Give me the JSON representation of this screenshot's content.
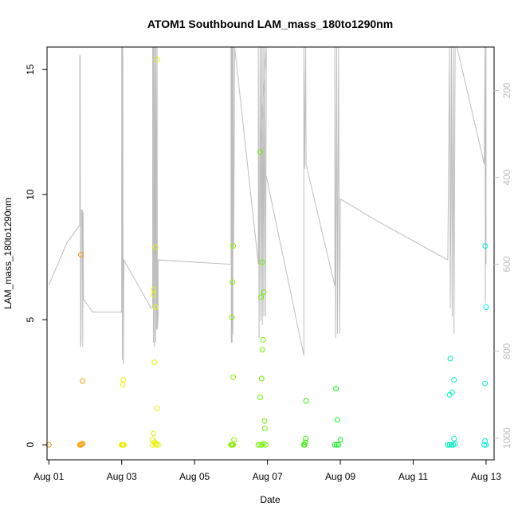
{
  "chart_data": {
    "type": "scatter",
    "title": "ATOM1 Southbound LAM_mass_180to1290nm",
    "xlabel": "Date",
    "ylabel": "LAM_mass_180to1290nm",
    "x_axis": {
      "min_day": 0.95,
      "max_day": 13.22,
      "ticks": [
        {
          "day": 1,
          "label": "Aug 01"
        },
        {
          "day": 3,
          "label": "Aug 03"
        },
        {
          "day": 5,
          "label": "Aug 05"
        },
        {
          "day": 7,
          "label": "Aug 07"
        },
        {
          "day": 9,
          "label": "Aug 09"
        },
        {
          "day": 11,
          "label": "Aug 11"
        },
        {
          "day": 13,
          "label": "Aug 13"
        }
      ]
    },
    "y_axis": {
      "ylim": [
        -0.6,
        15.9
      ],
      "ticks": [
        0,
        5,
        10,
        15
      ]
    },
    "y2_axis": {
      "ylim": [
        1050,
        100
      ],
      "ticks": [
        200,
        400,
        600,
        800,
        1000
      ],
      "reversed": true,
      "color": "#bdbdbd"
    },
    "grid": false,
    "points": [
      {
        "x": 1.0,
        "y": 0.0,
        "color": "#ff8c00"
      },
      {
        "x": 1.85,
        "y": 0.0,
        "color": "#ff9a00"
      },
      {
        "x": 1.88,
        "y": 0.0,
        "color": "#ff9a00"
      },
      {
        "x": 1.9,
        "y": 0.02,
        "color": "#ff9a00"
      },
      {
        "x": 1.93,
        "y": 0.05,
        "color": "#ffa000"
      },
      {
        "x": 1.88,
        "y": 7.6,
        "color": "#ff9a00"
      },
      {
        "x": 1.93,
        "y": 2.55,
        "color": "#ffa000"
      },
      {
        "x": 3.0,
        "y": 0.0,
        "color": "#f0ec00"
      },
      {
        "x": 3.02,
        "y": 0.0,
        "color": "#f0ec00"
      },
      {
        "x": 3.04,
        "y": 0.0,
        "color": "#f0ec00"
      },
      {
        "x": 3.06,
        "y": 0.0,
        "color": "#f0ec00"
      },
      {
        "x": 3.04,
        "y": 2.6,
        "color": "#f0ec00"
      },
      {
        "x": 3.03,
        "y": 2.4,
        "color": "#f0ec00"
      },
      {
        "x": 3.85,
        "y": 0.0,
        "color": "#e6f200"
      },
      {
        "x": 3.87,
        "y": 0.45,
        "color": "#e6f200"
      },
      {
        "x": 3.85,
        "y": 0.2,
        "color": "#e6f200"
      },
      {
        "x": 3.9,
        "y": 0.1,
        "color": "#e6f200"
      },
      {
        "x": 3.93,
        "y": 0.0,
        "color": "#e6f200"
      },
      {
        "x": 3.96,
        "y": 0.05,
        "color": "#e6f200"
      },
      {
        "x": 4.0,
        "y": 0.0,
        "color": "#e6f200"
      },
      {
        "x": 3.9,
        "y": 3.3,
        "color": "#e6f200"
      },
      {
        "x": 3.87,
        "y": 6.2,
        "color": "#e6f200"
      },
      {
        "x": 3.87,
        "y": 6.0,
        "color": "#e6f200"
      },
      {
        "x": 3.93,
        "y": 5.5,
        "color": "#e6f200"
      },
      {
        "x": 3.93,
        "y": 7.9,
        "color": "#e6f200"
      },
      {
        "x": 3.97,
        "y": 1.45,
        "color": "#e6f200"
      },
      {
        "x": 3.97,
        "y": 15.4,
        "color": "#e6f200"
      },
      {
        "x": 6.0,
        "y": 0.0,
        "color": "#8cf000"
      },
      {
        "x": 6.02,
        "y": 0.0,
        "color": "#8cf000"
      },
      {
        "x": 6.04,
        "y": 0.0,
        "color": "#8cf000"
      },
      {
        "x": 6.06,
        "y": 0.0,
        "color": "#8cf000"
      },
      {
        "x": 6.08,
        "y": 0.2,
        "color": "#8cf000"
      },
      {
        "x": 6.06,
        "y": 2.7,
        "color": "#8cf000"
      },
      {
        "x": 6.02,
        "y": 5.1,
        "color": "#8cf000"
      },
      {
        "x": 6.04,
        "y": 6.5,
        "color": "#8cf000"
      },
      {
        "x": 6.06,
        "y": 7.95,
        "color": "#8cf000"
      },
      {
        "x": 6.75,
        "y": 0.0,
        "color": "#70f000"
      },
      {
        "x": 6.8,
        "y": 0.0,
        "color": "#70f000"
      },
      {
        "x": 6.85,
        "y": 0.0,
        "color": "#70f000"
      },
      {
        "x": 6.9,
        "y": 0.05,
        "color": "#70f000"
      },
      {
        "x": 6.95,
        "y": 0.0,
        "color": "#70f000"
      },
      {
        "x": 6.8,
        "y": 11.7,
        "color": "#70f000"
      },
      {
        "x": 6.85,
        "y": 7.3,
        "color": "#70f000"
      },
      {
        "x": 6.9,
        "y": 6.1,
        "color": "#70f000"
      },
      {
        "x": 6.82,
        "y": 5.9,
        "color": "#70f000"
      },
      {
        "x": 6.88,
        "y": 4.2,
        "color": "#70f000"
      },
      {
        "x": 6.86,
        "y": 3.8,
        "color": "#70f000"
      },
      {
        "x": 6.84,
        "y": 2.65,
        "color": "#70f000"
      },
      {
        "x": 6.8,
        "y": 1.9,
        "color": "#70f000"
      },
      {
        "x": 6.92,
        "y": 0.95,
        "color": "#70f000"
      },
      {
        "x": 6.93,
        "y": 0.65,
        "color": "#70f000"
      },
      {
        "x": 8.0,
        "y": 0.0,
        "color": "#2cf000"
      },
      {
        "x": 8.02,
        "y": 0.0,
        "color": "#2cf000"
      },
      {
        "x": 8.04,
        "y": 0.1,
        "color": "#2cf000"
      },
      {
        "x": 8.05,
        "y": 0.25,
        "color": "#2cf000"
      },
      {
        "x": 8.06,
        "y": 1.75,
        "color": "#2cf000"
      },
      {
        "x": 8.85,
        "y": 0.0,
        "color": "#10f020"
      },
      {
        "x": 8.9,
        "y": 0.0,
        "color": "#10f020"
      },
      {
        "x": 8.95,
        "y": 0.0,
        "color": "#10f020"
      },
      {
        "x": 9.0,
        "y": 0.2,
        "color": "#10f020"
      },
      {
        "x": 8.92,
        "y": 1.0,
        "color": "#10f020"
      },
      {
        "x": 8.88,
        "y": 2.25,
        "color": "#10f020"
      },
      {
        "x": 11.95,
        "y": 0.0,
        "color": "#00f0c0"
      },
      {
        "x": 12.0,
        "y": 0.0,
        "color": "#00f0c0"
      },
      {
        "x": 12.05,
        "y": 0.0,
        "color": "#00f0c0"
      },
      {
        "x": 12.1,
        "y": 0.0,
        "color": "#00f0c0"
      },
      {
        "x": 12.15,
        "y": 0.05,
        "color": "#00f0c0"
      },
      {
        "x": 12.12,
        "y": 0.25,
        "color": "#00f0c0"
      },
      {
        "x": 12.0,
        "y": 2.0,
        "color": "#00f0c0"
      },
      {
        "x": 12.07,
        "y": 2.1,
        "color": "#00f0c0"
      },
      {
        "x": 12.12,
        "y": 2.6,
        "color": "#00f0c0"
      },
      {
        "x": 12.02,
        "y": 3.45,
        "color": "#00f0c0"
      },
      {
        "x": 12.95,
        "y": 0.0,
        "color": "#00f0d8"
      },
      {
        "x": 13.0,
        "y": 0.0,
        "color": "#00f0d8"
      },
      {
        "x": 12.97,
        "y": 0.15,
        "color": "#00f0d8"
      },
      {
        "x": 12.97,
        "y": 2.45,
        "color": "#00f0d8"
      },
      {
        "x": 13.0,
        "y": 5.5,
        "color": "#00f0d8"
      },
      {
        "x": 12.98,
        "y": 7.95,
        "color": "#00f0d8"
      }
    ],
    "line_series": {
      "axis": "right",
      "color": "#bdbdbd",
      "points": [
        {
          "x": 1.0,
          "y": 648
        },
        {
          "x": 1.5,
          "y": 550
        },
        {
          "x": 1.85,
          "y": 510
        },
        {
          "x": 1.85,
          "y": 120
        },
        {
          "x": 1.86,
          "y": 120
        },
        {
          "x": 1.87,
          "y": 790
        },
        {
          "x": 1.88,
          "y": 780
        },
        {
          "x": 1.9,
          "y": 475
        },
        {
          "x": 1.92,
          "y": 475
        },
        {
          "x": 1.93,
          "y": 790
        },
        {
          "x": 1.94,
          "y": 480
        },
        {
          "x": 1.95,
          "y": 680
        },
        {
          "x": 2.2,
          "y": 710
        },
        {
          "x": 3.0,
          "y": 710
        },
        {
          "x": 3.0,
          "y": 100
        },
        {
          "x": 3.01,
          "y": 100
        },
        {
          "x": 3.02,
          "y": 820
        },
        {
          "x": 3.03,
          "y": 100
        },
        {
          "x": 3.04,
          "y": 830
        },
        {
          "x": 3.06,
          "y": 590
        },
        {
          "x": 3.8,
          "y": 700
        },
        {
          "x": 3.85,
          "y": 700
        },
        {
          "x": 3.85,
          "y": 100
        },
        {
          "x": 3.86,
          "y": 100
        },
        {
          "x": 3.87,
          "y": 780
        },
        {
          "x": 3.88,
          "y": 100
        },
        {
          "x": 3.9,
          "y": 790
        },
        {
          "x": 3.91,
          "y": 100
        },
        {
          "x": 3.93,
          "y": 780
        },
        {
          "x": 3.94,
          "y": 100
        },
        {
          "x": 3.96,
          "y": 750
        },
        {
          "x": 3.97,
          "y": 100
        },
        {
          "x": 3.98,
          "y": 750
        },
        {
          "x": 4.0,
          "y": 720
        },
        {
          "x": 4.0,
          "y": 590
        },
        {
          "x": 6.0,
          "y": 600
        },
        {
          "x": 6.0,
          "y": 100
        },
        {
          "x": 6.01,
          "y": 780
        },
        {
          "x": 6.02,
          "y": 100
        },
        {
          "x": 6.03,
          "y": 780
        },
        {
          "x": 6.04,
          "y": 100
        },
        {
          "x": 6.05,
          "y": 760
        },
        {
          "x": 6.06,
          "y": 100
        },
        {
          "x": 6.07,
          "y": 560
        },
        {
          "x": 6.08,
          "y": 450
        },
        {
          "x": 6.1,
          "y": 100
        },
        {
          "x": 6.75,
          "y": 600
        },
        {
          "x": 6.75,
          "y": 100
        },
        {
          "x": 6.77,
          "y": 770
        },
        {
          "x": 6.8,
          "y": 100
        },
        {
          "x": 6.82,
          "y": 730
        },
        {
          "x": 6.84,
          "y": 100
        },
        {
          "x": 6.86,
          "y": 740
        },
        {
          "x": 6.88,
          "y": 100
        },
        {
          "x": 6.9,
          "y": 720
        },
        {
          "x": 6.92,
          "y": 100
        },
        {
          "x": 6.95,
          "y": 720
        },
        {
          "x": 6.97,
          "y": 100
        },
        {
          "x": 6.8,
          "y": 330
        },
        {
          "x": 8.0,
          "y": 810
        },
        {
          "x": 8.0,
          "y": 100
        },
        {
          "x": 8.02,
          "y": 380
        },
        {
          "x": 8.05,
          "y": 100
        },
        {
          "x": 8.06,
          "y": 370
        },
        {
          "x": 8.85,
          "y": 650
        },
        {
          "x": 8.85,
          "y": 100
        },
        {
          "x": 8.87,
          "y": 770
        },
        {
          "x": 8.9,
          "y": 100
        },
        {
          "x": 8.92,
          "y": 760
        },
        {
          "x": 8.95,
          "y": 100
        },
        {
          "x": 8.98,
          "y": 760
        },
        {
          "x": 9.0,
          "y": 450
        },
        {
          "x": 10.0,
          "y": 500
        },
        {
          "x": 11.95,
          "y": 590
        },
        {
          "x": 12.0,
          "y": 100
        },
        {
          "x": 12.02,
          "y": 700
        },
        {
          "x": 12.05,
          "y": 100
        },
        {
          "x": 12.07,
          "y": 720
        },
        {
          "x": 12.1,
          "y": 100
        },
        {
          "x": 12.12,
          "y": 760
        },
        {
          "x": 12.15,
          "y": 100
        },
        {
          "x": 12.2,
          "y": 100
        },
        {
          "x": 12.95,
          "y": 370
        },
        {
          "x": 12.97,
          "y": 100
        },
        {
          "x": 12.98,
          "y": 690
        },
        {
          "x": 13.0,
          "y": 100
        },
        {
          "x": 13.0,
          "y": 600
        }
      ]
    }
  }
}
